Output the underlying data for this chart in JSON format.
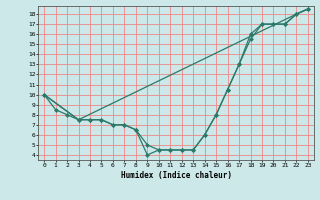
{
  "xlabel": "Humidex (Indice chaleur)",
  "bg_color": "#cce8e8",
  "grid_color": "#ee8888",
  "line_color": "#2d7a6a",
  "xlim": [
    -0.5,
    23.5
  ],
  "ylim": [
    3.5,
    18.8
  ],
  "xticks": [
    0,
    1,
    2,
    3,
    4,
    5,
    6,
    7,
    8,
    9,
    10,
    11,
    12,
    13,
    14,
    15,
    16,
    17,
    18,
    19,
    20,
    21,
    22,
    23
  ],
  "yticks": [
    4,
    5,
    6,
    7,
    8,
    9,
    10,
    11,
    12,
    13,
    14,
    15,
    16,
    17,
    18
  ],
  "line1_x": [
    0,
    1,
    2,
    3,
    4,
    5,
    6,
    7,
    8,
    9,
    10,
    11,
    12,
    13,
    14,
    15,
    16,
    17,
    18,
    19,
    20,
    21,
    22,
    23
  ],
  "line1_y": [
    10,
    8.5,
    8,
    7.5,
    7.5,
    7.5,
    7,
    7,
    6.5,
    5,
    4.5,
    4.5,
    4.5,
    4.5,
    6,
    8,
    10.5,
    13,
    15.5,
    17,
    17,
    17,
    18,
    18.5
  ],
  "line2_x": [
    0,
    3,
    4,
    5,
    6,
    7,
    8,
    9,
    10,
    11,
    12,
    13,
    14,
    15,
    16,
    17,
    18,
    19,
    20,
    21,
    22,
    23
  ],
  "line2_y": [
    10,
    7.5,
    7.5,
    7.5,
    7,
    7,
    6.5,
    4,
    4.5,
    4.5,
    4.5,
    4.5,
    6,
    8,
    10.5,
    13,
    16,
    17,
    17,
    17,
    18,
    18.5
  ],
  "line3_x": [
    0,
    3,
    22,
    23
  ],
  "line3_y": [
    10,
    7.5,
    18,
    18.5
  ]
}
